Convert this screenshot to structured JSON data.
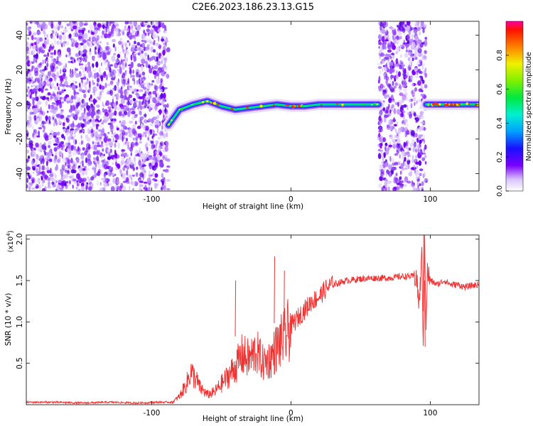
{
  "title": "C2E6.2023.186.23.13.G15",
  "chart_data": [
    {
      "type": "heatmap",
      "xlabel": "Height of straight line (km)",
      "ylabel": "Frequency (Hz)",
      "xlim": [
        -190,
        135
      ],
      "ylim": [
        -50,
        48
      ],
      "x_ticks": [
        -100,
        0,
        100
      ],
      "y_ticks": [
        -40,
        -20,
        0,
        20,
        40
      ],
      "colorbar": {
        "label": "Normalized spectral amplitude",
        "range": [
          0.0,
          1.0
        ],
        "ticks": [
          0.0,
          0.2,
          0.4,
          0.6,
          0.8
        ]
      },
      "noise_regions_x": [
        [
          -190,
          -88
        ],
        [
          63,
          97
        ]
      ],
      "signal_ridge": {
        "x": [
          -88,
          -80,
          -70,
          -60,
          -50,
          -40,
          -30,
          -20,
          -10,
          0,
          10,
          20,
          30,
          40,
          50,
          60,
          63
        ],
        "frequency": [
          -12,
          -3,
          0,
          2,
          -1,
          -3,
          -2,
          -1,
          0,
          -1,
          -1,
          0,
          0,
          0,
          0,
          0,
          0
        ]
      },
      "signal_ridge_2": {
        "x": [
          97,
          105,
          115,
          125,
          135
        ],
        "frequency": [
          0,
          0,
          0,
          0,
          0
        ]
      }
    },
    {
      "type": "line",
      "xlabel": "Height of straight line (km)",
      "ylabel": "SNR (10 * v/v)",
      "y_multiplier": "(x10^4)",
      "xlim": [
        -190,
        135
      ],
      "ylim": [
        0,
        2.05
      ],
      "x_ticks": [
        -100,
        0,
        100
      ],
      "y_ticks": [
        0.5,
        1.0,
        1.5,
        2.0
      ],
      "series": [
        {
          "color": "#ee3333",
          "x": [
            -190,
            -170,
            -150,
            -130,
            -110,
            -95,
            -85,
            -80,
            -75,
            -72,
            -68,
            -65,
            -60,
            -55,
            -50,
            -45,
            -40,
            -35,
            -30,
            -25,
            -20,
            -15,
            -10,
            -5,
            0,
            5,
            10,
            15,
            20,
            25,
            30,
            40,
            50,
            60,
            70,
            80,
            85,
            90,
            92,
            94,
            95,
            96,
            97,
            98,
            100,
            105,
            110,
            115,
            120,
            125,
            130,
            135
          ],
          "y": [
            0.03,
            0.03,
            0.02,
            0.03,
            0.02,
            0.03,
            0.03,
            0.1,
            0.25,
            0.4,
            0.3,
            0.2,
            0.12,
            0.15,
            0.25,
            0.35,
            0.45,
            0.6,
            0.55,
            0.65,
            0.5,
            0.55,
            0.7,
            0.8,
            0.95,
            1.05,
            1.15,
            1.25,
            1.3,
            1.4,
            1.45,
            1.5,
            1.52,
            1.53,
            1.53,
            1.55,
            1.55,
            1.55,
            1.2,
            1.8,
            0.75,
            2.0,
            1.0,
            1.6,
            1.5,
            1.45,
            1.5,
            1.45,
            1.45,
            1.42,
            1.44,
            1.45
          ]
        }
      ],
      "spikes": [
        {
          "x": -40,
          "y": 1.5
        },
        {
          "x": -12,
          "y": 1.79
        },
        {
          "x": -5,
          "y": 1.62
        },
        {
          "x": 95,
          "y": 2.05
        },
        {
          "x": 96,
          "y": 0.7
        }
      ]
    }
  ]
}
